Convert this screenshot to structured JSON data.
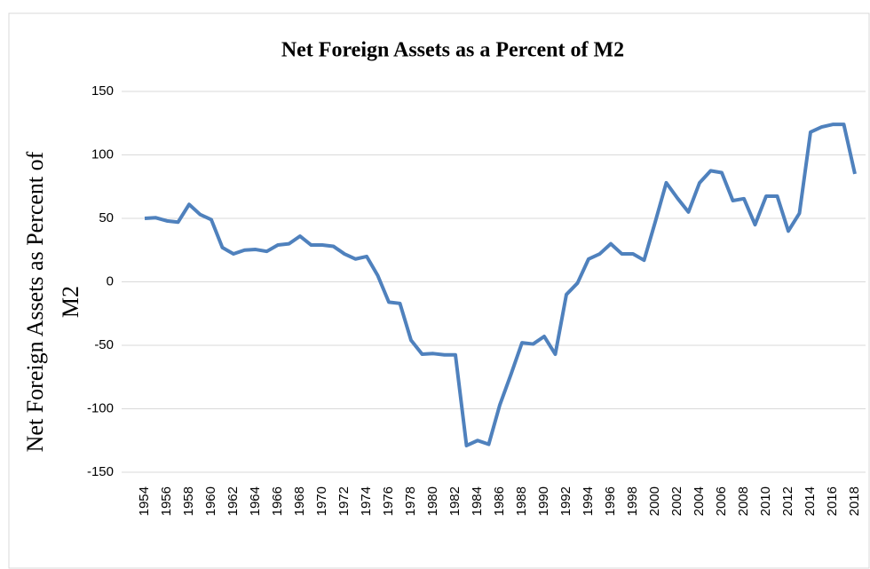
{
  "chart_data": {
    "type": "line",
    "title": "Net Foreign Assets as a Percent of M2",
    "y_label": "Net Foreign Assets as Percent of M2",
    "categories": [
      "1954",
      null,
      "1956",
      null,
      "1958",
      null,
      "1960",
      null,
      "1962",
      null,
      "1964",
      null,
      "1966",
      null,
      "1968",
      null,
      "1970",
      null,
      "1972",
      null,
      "1974",
      null,
      "1976",
      null,
      "1978",
      null,
      "1980",
      null,
      "1982",
      null,
      "1984",
      null,
      "1986",
      null,
      "1988",
      null,
      "1990",
      null,
      "1992",
      null,
      "1994",
      null,
      "1996",
      null,
      "1998",
      null,
      "2000",
      null,
      "2002",
      null,
      "2004",
      null,
      "2006",
      null,
      "2008",
      null,
      "2010",
      null,
      "2012",
      null,
      "2014",
      null,
      "2016",
      null,
      "2018"
    ],
    "series": [
      {
        "name": "Net Foreign Assets as Percent of M2",
        "color": "#4f81bd",
        "values": [
          50,
          50.5,
          48,
          47,
          61,
          53,
          49,
          27,
          22,
          25,
          25.5,
          24,
          29,
          30,
          36,
          29,
          29,
          28,
          22,
          18,
          20,
          5,
          -16,
          -17,
          -46,
          -57,
          -56.5,
          -57.5,
          -57.5,
          -129,
          -125,
          -128,
          -97,
          -73,
          -48,
          -49,
          -43,
          -57,
          -10,
          -1,
          18,
          22,
          30,
          22,
          22,
          17,
          47,
          78,
          66,
          55,
          78,
          87.5,
          86,
          64,
          65.5,
          45,
          67.5,
          67.5,
          40,
          54,
          118,
          122,
          124,
          124,
          85
        ]
      }
    ],
    "ylim": [
      -150,
      150
    ],
    "yticks": [
      -150,
      -100,
      -50,
      0,
      50,
      100,
      150
    ],
    "grid": true
  }
}
